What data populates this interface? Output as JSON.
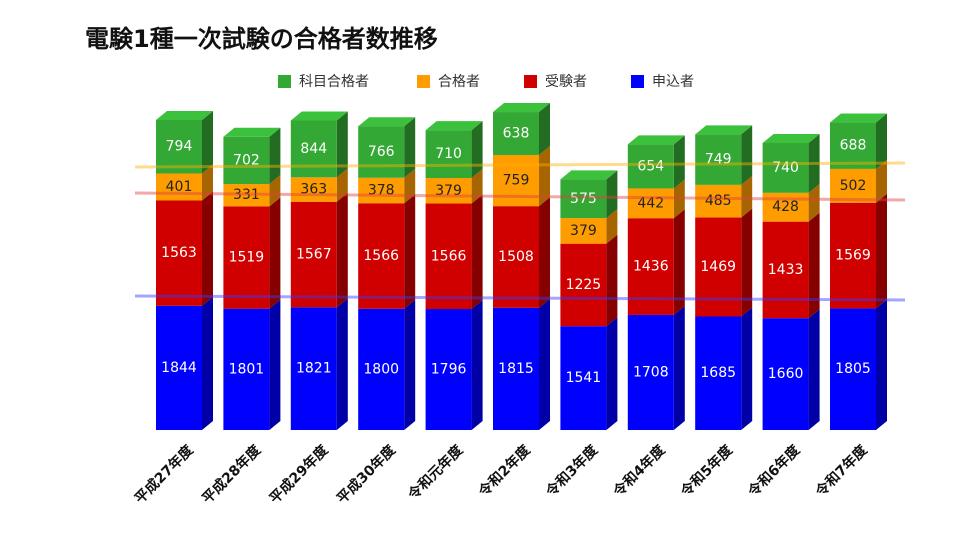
{
  "chart_data": {
    "type": "stacked-bar-3d",
    "title": "電験1種一次試験の合格者数推移",
    "categories": [
      "平成27年度",
      "平成28年度",
      "平成29年度",
      "平成30年度",
      "令和元年度",
      "令和2年度",
      "令和3年度",
      "令和4年度",
      "令和5年度",
      "令和6年度",
      "令和7年度"
    ],
    "series": [
      {
        "name": "科目合格者",
        "color": "#34a835",
        "values": [
          794,
          702,
          844,
          766,
          710,
          638,
          575,
          654,
          749,
          740,
          688
        ]
      },
      {
        "name": "合格者",
        "color": "#ff9c00",
        "values": [
          401,
          331,
          363,
          378,
          379,
          759,
          379,
          442,
          485,
          428,
          502
        ]
      },
      {
        "name": "受験者",
        "color": "#d00000",
        "values": [
          1563,
          1519,
          1567,
          1566,
          1566,
          1508,
          1225,
          1436,
          1469,
          1433,
          1569
        ]
      },
      {
        "name": "申込者",
        "color": "#0000ff",
        "values": [
          1844,
          1801,
          1821,
          1800,
          1796,
          1815,
          1541,
          1708,
          1685,
          1660,
          1805
        ]
      }
    ]
  }
}
